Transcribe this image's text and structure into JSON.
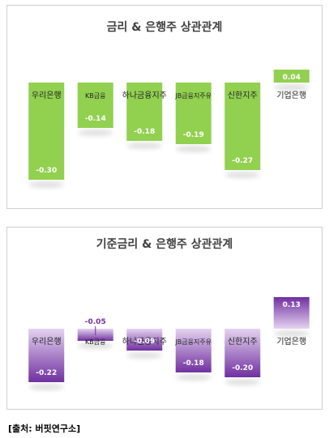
{
  "chart_data": [
    {
      "type": "bar",
      "title": "금리 & 은행주 상관관계",
      "categories": [
        "우리은행",
        "KB금융",
        "하나금융지주",
        "JB금융지주유",
        "신한지주",
        "기업은행"
      ],
      "values": [
        -0.3,
        -0.14,
        -0.18,
        -0.19,
        -0.27,
        0.04
      ],
      "value_labels": [
        "-0.30",
        "-0.14",
        "-0.18",
        "-0.19",
        "-0.27",
        "0.04"
      ],
      "ylim": [
        -0.32,
        0.05
      ],
      "color": "#92d050",
      "color_light": "#c9e79c",
      "grid": false,
      "legend": "none"
    },
    {
      "type": "bar",
      "title": "기준금리 & 은행주 상관관계",
      "categories": [
        "우리은행",
        "KB금융",
        "하나금융지주",
        "JB금융지주유",
        "신한지주",
        "기업은행"
      ],
      "values": [
        -0.22,
        -0.05,
        -0.09,
        -0.18,
        -0.2,
        0.13
      ],
      "value_labels": [
        "-0.22",
        "-0.05",
        "-0.09",
        "-0.18",
        "-0.20",
        "0.13"
      ],
      "ylim": [
        -0.24,
        0.15
      ],
      "color": "#7030a0",
      "color_light": "#e4d3f0",
      "grid": false,
      "legend": "none"
    }
  ],
  "source": "[출처: 버핏연구소]"
}
